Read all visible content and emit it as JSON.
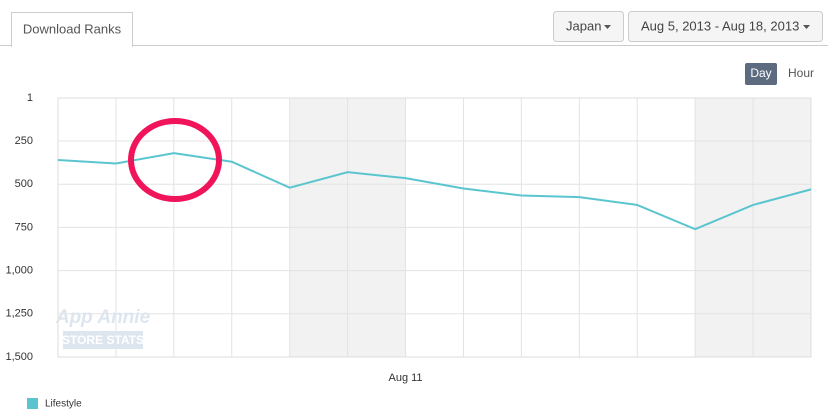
{
  "ui": {
    "tab": "Download Ranks",
    "country": "Japan",
    "date_range": "Aug 5, 2013 - Aug 18, 2013",
    "granularity": [
      "Day",
      "Hour"
    ],
    "watermark": [
      "App Annie",
      "STORE STATS"
    ]
  },
  "chart_data": {
    "type": "line",
    "y_inverted": true,
    "categories": [
      null,
      null,
      null,
      null,
      null,
      null,
      "Aug 11",
      null,
      null,
      null,
      null,
      null,
      null,
      null
    ],
    "series": [
      {
        "name": "Lifestyle",
        "color": "#5bc5cf",
        "values": [
          360,
          380,
          320,
          370,
          520,
          430,
          465,
          525,
          565,
          575,
          620,
          760,
          620,
          530
        ]
      }
    ],
    "ylim": [
      1,
      1500
    ],
    "yticks": [
      1,
      250,
      500,
      750,
      {
        "value": 1000,
        "label": "1,000"
      },
      {
        "value": 1250,
        "label": "1,250"
      },
      {
        "value": 1500,
        "label": "1,500"
      }
    ],
    "grid": true,
    "legend": "bottom-left"
  }
}
